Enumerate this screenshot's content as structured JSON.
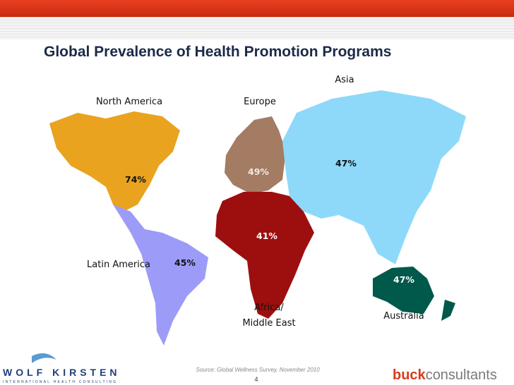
{
  "header": {
    "title": "Global Prevalence of Health Promotion Programs"
  },
  "regions": [
    {
      "name": "North America",
      "label": "74%"
    },
    {
      "name": "Europe",
      "label": "49%"
    },
    {
      "name": "Asia",
      "label": "47%"
    },
    {
      "name": "Latin America",
      "label": "45%"
    },
    {
      "name": "Africa/",
      "name2": "Middle East",
      "label": "41%"
    },
    {
      "name": "Australia",
      "label": "47%"
    }
  ],
  "footer": {
    "source": "Source: Global Wellness Survey, November 2010",
    "page": "4",
    "logo_left": "WOLF KIRSTEN",
    "logo_left_sub": "INTERNATIONAL HEALTH CONSULTING",
    "logo_right_a": "buck",
    "logo_right_b": "consultants"
  }
}
